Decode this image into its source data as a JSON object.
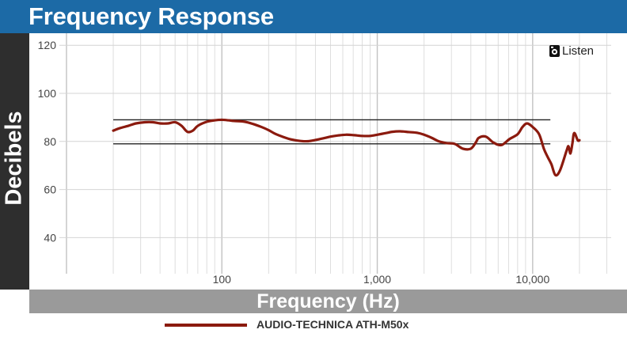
{
  "header": {
    "title": "Frequency Response"
  },
  "brand": {
    "name": "Listen",
    "icon": "speaker-logo-icon"
  },
  "chart_data": {
    "type": "line",
    "title": "Frequency Response",
    "xlabel": "Frequency (Hz)",
    "ylabel": "Decibels",
    "x_scale": "log",
    "xlim": [
      9,
      32000
    ],
    "ylim": [
      25,
      125
    ],
    "x_ticks": [
      {
        "value": 100,
        "label": "100"
      },
      {
        "value": 1000,
        "label": "1,000"
      },
      {
        "value": 10000,
        "label": "10,000"
      }
    ],
    "y_ticks": [
      {
        "value": 120,
        "label": "120"
      },
      {
        "value": 100,
        "label": "100"
      },
      {
        "value": 80,
        "label": "80"
      },
      {
        "value": 60,
        "label": "60"
      },
      {
        "value": 40,
        "label": "40"
      }
    ],
    "grid": true,
    "legend": "bottom",
    "reference_bounds": [
      {
        "y": 89,
        "x_range": [
          20,
          13000
        ]
      },
      {
        "y": 79,
        "x_range": [
          20,
          13000
        ]
      }
    ],
    "series": [
      {
        "name": "AUDIO-TECHNICA ATH-M50x",
        "color": "#8b1a0e",
        "x": [
          20,
          22,
          25,
          28,
          32,
          36,
          40,
          45,
          50,
          55,
          60,
          65,
          70,
          80,
          90,
          100,
          110,
          120,
          140,
          160,
          180,
          200,
          220,
          250,
          280,
          320,
          360,
          400,
          450,
          500,
          560,
          630,
          710,
          800,
          900,
          1000,
          1120,
          1250,
          1400,
          1600,
          1800,
          2000,
          2240,
          2500,
          2800,
          3150,
          3550,
          4000,
          4300,
          4500,
          5000,
          5600,
          6300,
          7100,
          8000,
          8600,
          9200,
          10000,
          11000,
          11800,
          12500,
          13200,
          14000,
          15000,
          16500,
          17000,
          17500,
          18000,
          18500,
          19500,
          20000
        ],
        "values": [
          84.5,
          85.5,
          86.5,
          87.5,
          88,
          88,
          87.5,
          87.5,
          88,
          86.5,
          84,
          84.5,
          86.5,
          88.2,
          88.8,
          89,
          88.8,
          88.5,
          88.2,
          87.2,
          86,
          84.7,
          83.2,
          81.8,
          80.8,
          80.2,
          80.1,
          80.6,
          81.3,
          82,
          82.5,
          82.8,
          82.6,
          82.3,
          82.3,
          82.8,
          83.4,
          84,
          84.2,
          83.9,
          83.6,
          82.8,
          81.5,
          80,
          79.3,
          79,
          77,
          77,
          79.5,
          81.5,
          82,
          79.5,
          78.5,
          81,
          83,
          86,
          87.5,
          86,
          83,
          77,
          73.5,
          70.5,
          66,
          68,
          76,
          78,
          75,
          79,
          83.5,
          80.5,
          80.5
        ]
      }
    ]
  }
}
